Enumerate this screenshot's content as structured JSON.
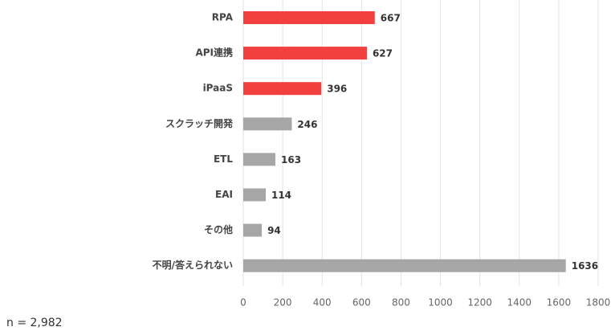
{
  "chart_data": {
    "type": "hbar",
    "categories": [
      "RPA",
      "API連携",
      "iPaaS",
      "スクラッチ開発",
      "ETL",
      "EAI",
      "その他",
      "不明/答えられない"
    ],
    "values": [
      667,
      627,
      396,
      246,
      163,
      114,
      94,
      1636
    ],
    "colors": [
      "#f2403f",
      "#f2403f",
      "#f2403f",
      "#a6a6a6",
      "#a6a6a6",
      "#a6a6a6",
      "#a6a6a6",
      "#a6a6a6"
    ],
    "xlim": [
      0,
      1800
    ],
    "xticks": [
      0,
      200,
      400,
      600,
      800,
      1000,
      1200,
      1400,
      1600,
      1800
    ],
    "grid": true,
    "note": "n = 2,982"
  }
}
